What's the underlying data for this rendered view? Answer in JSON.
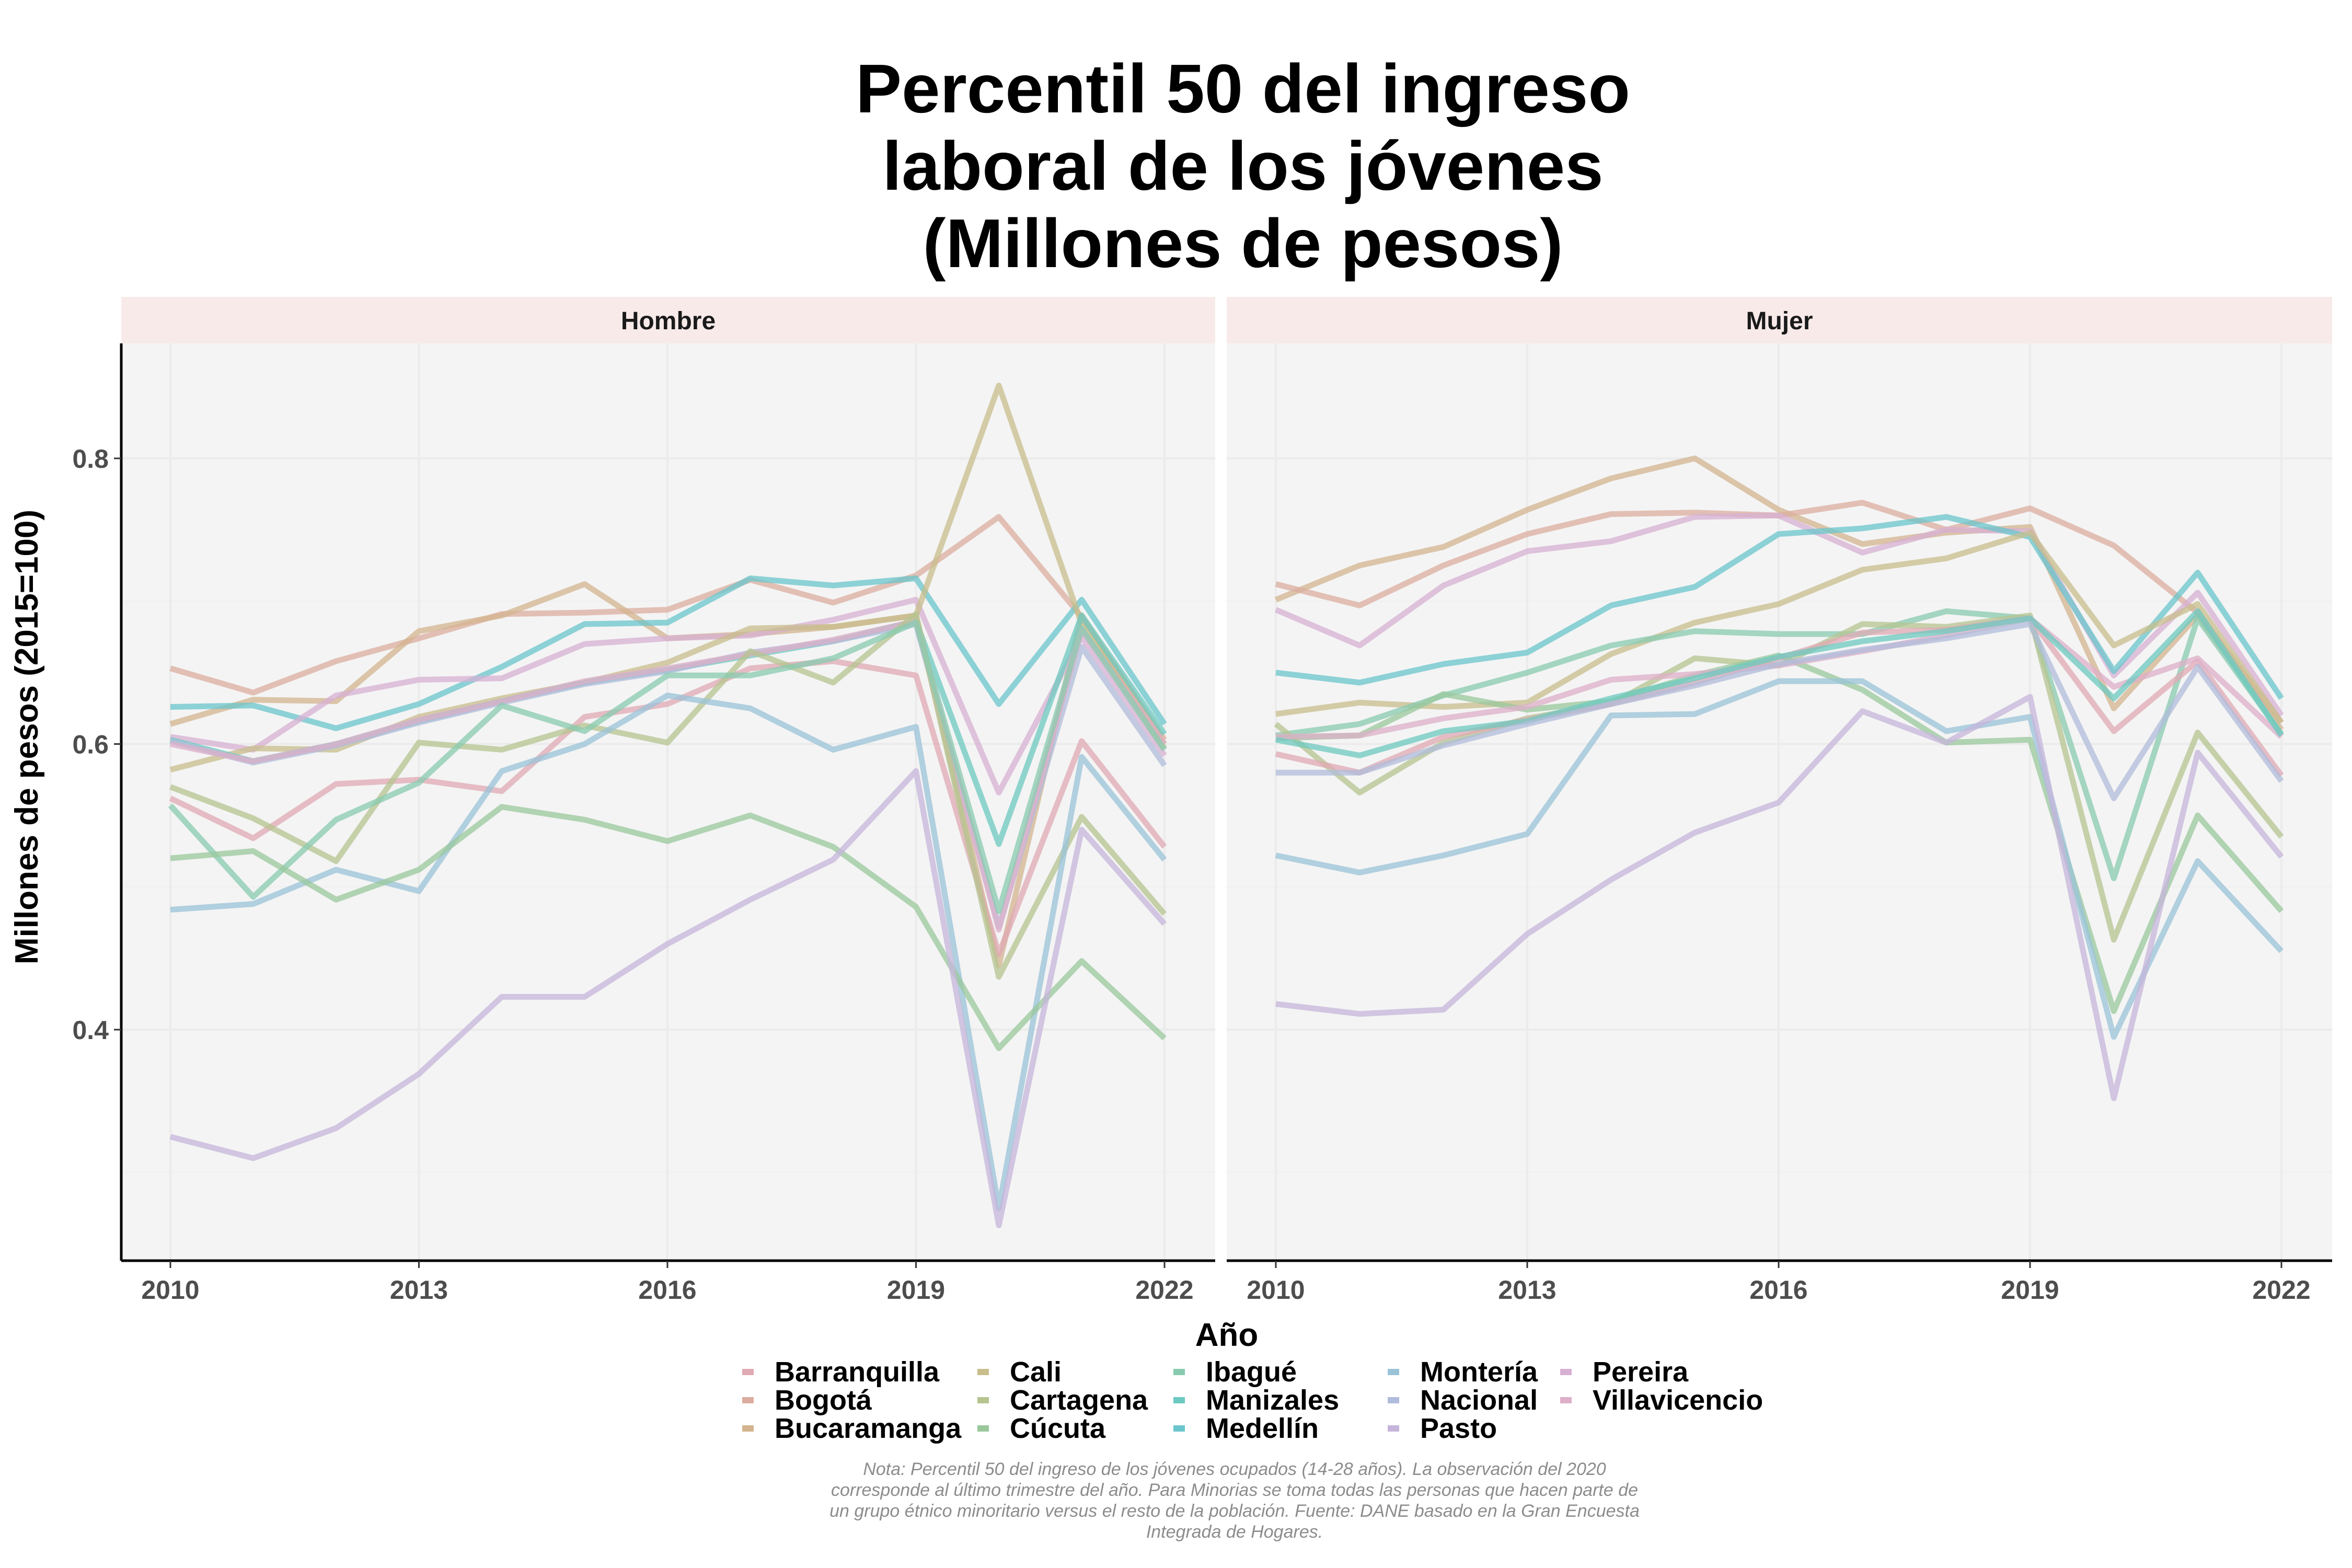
{
  "chart_data": {
    "type": "line",
    "title": [
      "Percentil 50 del ingreso",
      "laboral de los jóvenes",
      "(Millones de pesos)"
    ],
    "xlabel": "Año",
    "ylabel": "Millones de pesos (2015=100)",
    "x": [
      2010,
      2011,
      2012,
      2013,
      2014,
      2015,
      2016,
      2017,
      2018,
      2019,
      2020,
      2021,
      2022
    ],
    "x_ticks": [
      2010,
      2013,
      2016,
      2019,
      2022
    ],
    "y_ticks": [
      0.4,
      0.6,
      0.8
    ],
    "y_tick_labels": [
      "0.4",
      "0.6",
      "0.8"
    ],
    "ylim": [
      0.23,
      0.88
    ],
    "xlim": [
      2009.4,
      2022.6
    ],
    "grid": true,
    "legend_position": "bottom",
    "colors": {
      "Barranquilla": "#E0A9B4",
      "Bogotá": "#DCAD9F",
      "Bucaramanga": "#D3B48F",
      "Cali": "#C8BE8C",
      "Cartagena": "#B6C490",
      "Cúcuta": "#9AC89C",
      "Ibagué": "#88CBB0",
      "Manizales": "#6CC9C0",
      "Medellín": "#6AC6CC",
      "Montería": "#9AC3D8",
      "Nacional": "#B0BCDB",
      "Pasto": "#C6B5DB",
      "Pereira": "#D7B0D3",
      "Villavicencio": "#DEAFC8"
    },
    "legend": [
      [
        "Barranquilla",
        "Bogotá",
        "Bucaramanga"
      ],
      [
        "Cali",
        "Cartagena",
        "Cúcuta"
      ],
      [
        "Ibagué",
        "Manizales",
        "Medellín"
      ],
      [
        "Montería",
        "Nacional",
        "Pasto"
      ],
      [
        "Pereira",
        "Villavicencio"
      ]
    ],
    "panels": [
      {
        "label": "Hombre",
        "series": [
          {
            "name": "Bogotá",
            "values": [
              0.653,
              0.636,
              0.658,
              0.674,
              0.691,
              0.692,
              0.694,
              0.715,
              0.699,
              0.718,
              0.759,
              0.689,
              0.603
            ]
          },
          {
            "name": "Bucaramanga",
            "values": [
              0.614,
              0.631,
              0.63,
              0.679,
              0.69,
              0.712,
              0.674,
              0.677,
              0.682,
              0.69,
              0.445,
              0.69,
              0.6
            ]
          },
          {
            "name": "Medellín",
            "values": [
              0.626,
              0.627,
              0.611,
              0.628,
              0.654,
              0.684,
              0.685,
              0.716,
              0.711,
              0.716,
              0.628,
              0.701,
              0.614
            ]
          },
          {
            "name": "Pereira",
            "values": [
              0.605,
              0.596,
              0.634,
              0.645,
              0.646,
              0.67,
              0.674,
              0.676,
              0.687,
              0.701,
              0.566,
              0.675,
              0.592
            ]
          },
          {
            "name": "Cali",
            "values": [
              0.582,
              0.597,
              0.596,
              0.619,
              0.632,
              0.643,
              0.657,
              0.681,
              0.682,
              0.69,
              0.851,
              0.684,
              0.597
            ]
          },
          {
            "name": "Manizales",
            "values": [
              0.603,
              0.588,
              0.6,
              0.616,
              0.63,
              0.643,
              0.652,
              0.662,
              0.672,
              0.686,
              0.53,
              0.69,
              0.607
            ]
          },
          {
            "name": "Nacional",
            "values": [
              0.602,
              0.587,
              0.599,
              0.615,
              0.629,
              0.642,
              0.651,
              0.664,
              0.672,
              0.684,
              0.472,
              0.668,
              0.585
            ]
          },
          {
            "name": "Barranquilla",
            "values": [
              0.562,
              0.534,
              0.572,
              0.575,
              0.567,
              0.619,
              0.628,
              0.653,
              0.658,
              0.648,
              0.453,
              0.602,
              0.528
            ]
          },
          {
            "name": "Villavicencio",
            "values": [
              0.6,
              0.588,
              0.6,
              0.617,
              0.63,
              0.644,
              0.653,
              0.663,
              0.673,
              0.686,
              0.47,
              0.68,
              0.6
            ]
          },
          {
            "name": "Cartagena",
            "values": [
              0.57,
              0.548,
              0.518,
              0.601,
              0.596,
              0.613,
              0.601,
              0.665,
              0.643,
              0.691,
              0.437,
              0.549,
              0.481
            ]
          },
          {
            "name": "Ibagué",
            "values": [
              0.557,
              0.493,
              0.547,
              0.573,
              0.627,
              0.609,
              0.648,
              0.648,
              0.66,
              0.685,
              0.483,
              0.681,
              0.596
            ]
          },
          {
            "name": "Montería",
            "values": [
              0.484,
              0.488,
              0.512,
              0.497,
              0.581,
              0.6,
              0.634,
              0.625,
              0.596,
              0.612,
              0.275,
              0.591,
              0.519
            ]
          },
          {
            "name": "Cúcuta",
            "values": [
              0.52,
              0.525,
              0.491,
              0.512,
              0.556,
              0.547,
              0.532,
              0.55,
              0.528,
              0.486,
              0.387,
              0.448,
              0.394
            ]
          },
          {
            "name": "Pasto",
            "values": [
              0.325,
              0.31,
              0.331,
              0.369,
              0.423,
              0.423,
              0.46,
              0.491,
              0.519,
              0.581,
              0.263,
              0.54,
              0.474
            ]
          }
        ]
      },
      {
        "label": "Mujer",
        "series": [
          {
            "name": "Bucaramanga",
            "values": [
              0.701,
              0.725,
              0.738,
              0.764,
              0.786,
              0.8,
              0.764,
              0.74,
              0.748,
              0.752,
              0.625,
              0.69,
              0.61
            ]
          },
          {
            "name": "Bogotá",
            "values": [
              0.712,
              0.697,
              0.725,
              0.747,
              0.761,
              0.762,
              0.76,
              0.769,
              0.75,
              0.765,
              0.739,
              0.692,
              0.615
            ]
          },
          {
            "name": "Pereira",
            "values": [
              0.694,
              0.669,
              0.711,
              0.735,
              0.742,
              0.759,
              0.76,
              0.734,
              0.75,
              0.749,
              0.648,
              0.706,
              0.62
            ]
          },
          {
            "name": "Medellín",
            "values": [
              0.65,
              0.643,
              0.656,
              0.664,
              0.697,
              0.71,
              0.747,
              0.751,
              0.759,
              0.745,
              0.651,
              0.72,
              0.632
            ]
          },
          {
            "name": "Cali",
            "values": [
              0.621,
              0.629,
              0.626,
              0.629,
              0.663,
              0.685,
              0.698,
              0.722,
              0.73,
              0.748,
              0.669,
              0.698,
              0.615
            ]
          },
          {
            "name": "Ibagué",
            "values": [
              0.606,
              0.614,
              0.634,
              0.65,
              0.669,
              0.679,
              0.677,
              0.677,
              0.693,
              0.688,
              0.506,
              0.688,
              0.607
            ]
          },
          {
            "name": "Cartagena",
            "values": [
              0.614,
              0.566,
              0.601,
              0.618,
              0.628,
              0.66,
              0.655,
              0.684,
              0.682,
              0.69,
              0.463,
              0.608,
              0.535
            ]
          },
          {
            "name": "Cúcuta",
            "values": [
              0.604,
              0.606,
              0.635,
              0.624,
              0.63,
              0.648,
              0.662,
              0.638,
              0.601,
              0.603,
              0.413,
              0.55,
              0.483
            ]
          },
          {
            "name": "Barranquilla",
            "values": [
              0.593,
              0.58,
              0.605,
              0.617,
              0.628,
              0.643,
              0.66,
              0.678,
              0.68,
              0.688,
              0.609,
              0.658,
              0.578
            ]
          },
          {
            "name": "Villavicencio",
            "values": [
              0.605,
              0.606,
              0.618,
              0.626,
              0.645,
              0.649,
              0.655,
              0.665,
              0.676,
              0.688,
              0.64,
              0.66,
              0.605
            ]
          },
          {
            "name": "Manizales",
            "values": [
              0.603,
              0.592,
              0.609,
              0.616,
              0.632,
              0.646,
              0.661,
              0.672,
              0.679,
              0.688,
              0.632,
              0.693,
              0.606
            ]
          },
          {
            "name": "Nacional",
            "values": [
              0.58,
              0.58,
              0.599,
              0.614,
              0.628,
              0.641,
              0.656,
              0.666,
              0.674,
              0.684,
              0.562,
              0.654,
              0.574
            ]
          },
          {
            "name": "Montería",
            "values": [
              0.522,
              0.51,
              0.522,
              0.537,
              0.62,
              0.621,
              0.644,
              0.644,
              0.609,
              0.619,
              0.395,
              0.518,
              0.455
            ]
          },
          {
            "name": "Pasto",
            "values": [
              0.418,
              0.411,
              0.414,
              0.467,
              0.505,
              0.538,
              0.559,
              0.623,
              0.601,
              0.633,
              0.352,
              0.594,
              0.521
            ]
          }
        ]
      }
    ],
    "note": [
      "Nota: Percentil 50 del ingreso de los jóvenes ocupados (14-28 años). La observación del 2020",
      "corresponde al último trimestre del año. Para Minorias se toma todas las personas que hacen parte de",
      "un grupo étnico minoritario versus el resto de la población. Fuente: DANE basado en la Gran Encuesta",
      "Integrada de Hogares."
    ]
  },
  "style": {
    "panel_bg": "#F4F4F4",
    "strip_bg": "#F9EAEA",
    "grid_color": "#EBEBEB",
    "line_opacity": 0.75
  }
}
